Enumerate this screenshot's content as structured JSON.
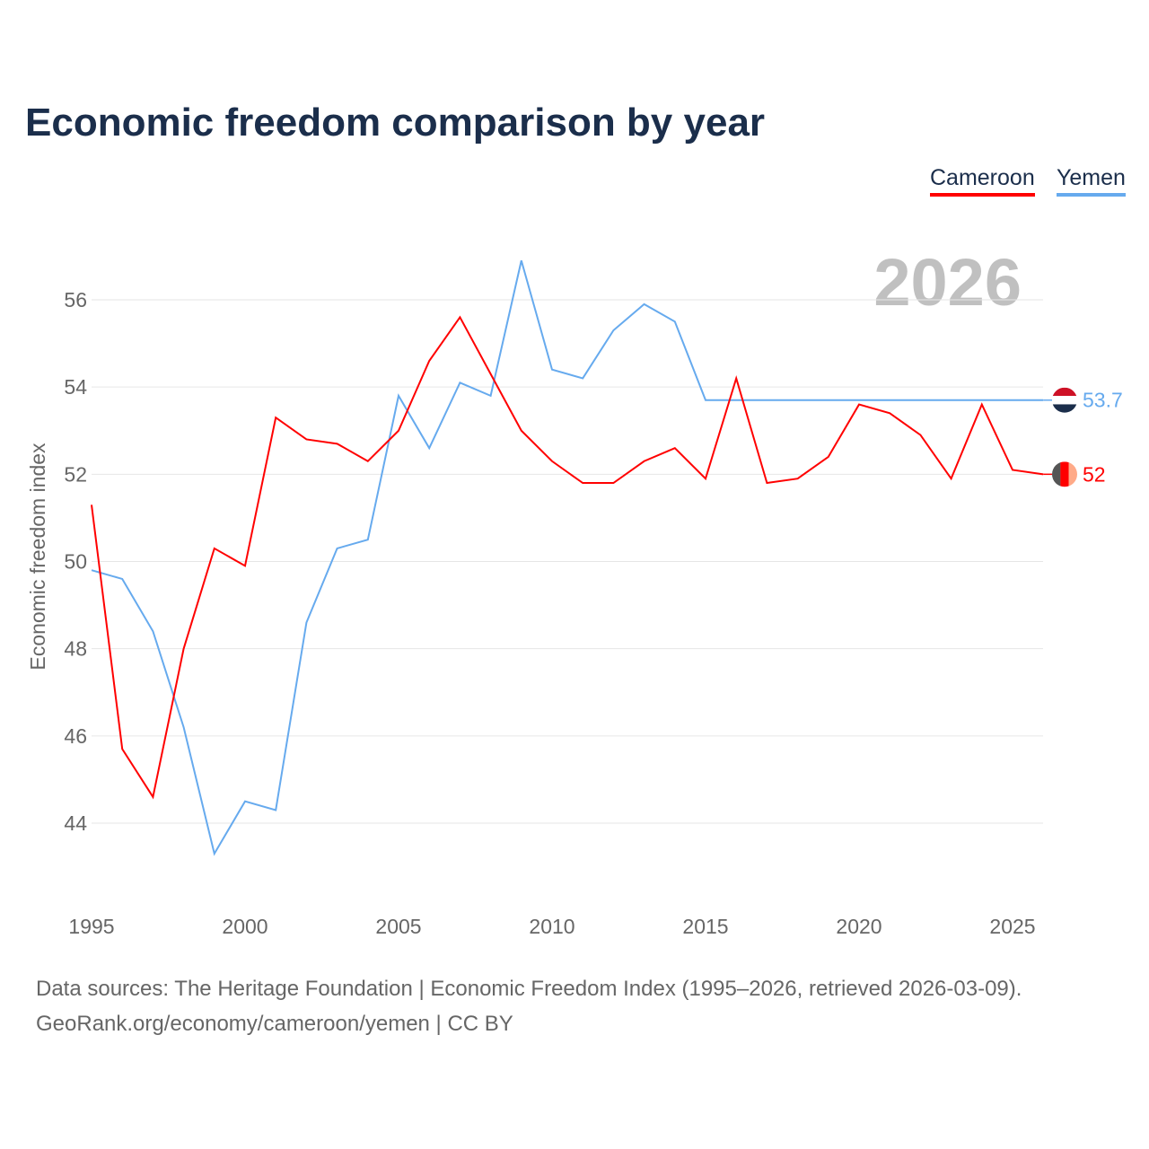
{
  "title": "Economic freedom comparison by year",
  "year_watermark": "2026",
  "sources": {
    "line1": "Data sources: The Heritage Foundation | Economic Freedom Index (1995–2026, retrieved 2026-03-09).",
    "line2": "GeoRank.org/economy/cameroon/yemen | CC BY"
  },
  "chart_data": {
    "type": "line",
    "title": "Economic freedom comparison by year",
    "xlabel": "",
    "ylabel": "Economic freedom index",
    "xlim": [
      1995,
      2026
    ],
    "ylim": [
      42.2,
      58
    ],
    "xticks": [
      1995,
      2000,
      2005,
      2010,
      2015,
      2020,
      2025
    ],
    "yticks": [
      44,
      46,
      48,
      50,
      52,
      54,
      56
    ],
    "grid": true,
    "legend_position": "top-right",
    "x": [
      1995,
      1996,
      1997,
      1998,
      1999,
      2000,
      2001,
      2002,
      2003,
      2004,
      2005,
      2006,
      2007,
      2008,
      2009,
      2010,
      2011,
      2012,
      2013,
      2014,
      2015,
      2016,
      2017,
      2018,
      2019,
      2020,
      2021,
      2022,
      2023,
      2024,
      2025,
      2026
    ],
    "series": [
      {
        "name": "Cameroon",
        "color": "#ff0000",
        "end_label": "52",
        "values": [
          51.3,
          45.7,
          44.6,
          48.0,
          50.3,
          49.9,
          53.3,
          52.8,
          52.7,
          52.3,
          53.0,
          54.6,
          55.6,
          54.3,
          53.0,
          52.3,
          51.8,
          51.8,
          52.3,
          52.6,
          51.9,
          54.2,
          51.8,
          51.9,
          52.4,
          53.6,
          53.4,
          52.9,
          51.9,
          53.6,
          52.1,
          52.0
        ]
      },
      {
        "name": "Yemen",
        "color": "#66aaee",
        "end_label": "53.7",
        "values": [
          49.8,
          49.6,
          48.4,
          46.2,
          43.3,
          44.5,
          44.3,
          48.6,
          50.3,
          50.5,
          53.8,
          52.6,
          54.1,
          53.8,
          56.9,
          54.4,
          54.2,
          55.3,
          55.9,
          55.5,
          53.7,
          53.7,
          53.7,
          53.7,
          53.7,
          53.7,
          53.7,
          53.7,
          53.7,
          53.7,
          53.7,
          53.7
        ]
      }
    ]
  }
}
